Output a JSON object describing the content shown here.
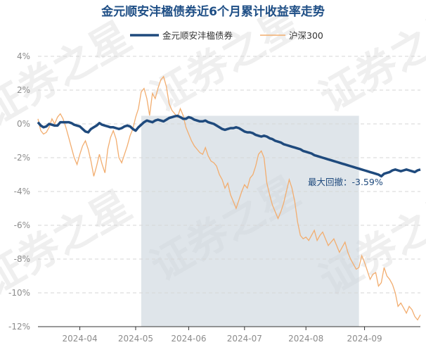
{
  "chart_data": {
    "type": "line",
    "title": "金元顺安沣楹债券近6个月累计收益率走势",
    "watermark": "证券之星",
    "ylim": [
      -12,
      4
    ],
    "yticks": [
      4,
      2,
      0,
      -2,
      -4,
      -6,
      -8,
      -10,
      -12
    ],
    "ytick_labels": [
      "4%",
      "2%",
      "0%",
      "-2%",
      "-4%",
      "-6%",
      "-8%",
      "-10%",
      "-12%"
    ],
    "xlim": [
      0,
      137
    ],
    "xticks": [
      {
        "label": "2024-04",
        "x": 15
      },
      {
        "label": "2024-05",
        "x": 35
      },
      {
        "label": "2024-06",
        "x": 54
      },
      {
        "label": "2024-07",
        "x": 74
      },
      {
        "label": "2024-08",
        "x": 96
      },
      {
        "label": "2024-09",
        "x": 117
      }
    ],
    "drawdown": {
      "label": "最大回撤：-3.59%",
      "start_x": 37,
      "end_x": 115,
      "top_y": 0.48
    },
    "series": [
      {
        "name": "金元顺安沣楹债券",
        "color": "#1f4a7d",
        "values": [
          0.1,
          -0.1,
          -0.2,
          -0.15,
          0.0,
          -0.05,
          -0.1,
          -0.1,
          0.1,
          0.1,
          0.1,
          0.1,
          0.05,
          -0.05,
          -0.1,
          -0.15,
          -0.3,
          -0.45,
          -0.5,
          -0.3,
          -0.2,
          -0.1,
          0.05,
          -0.05,
          -0.1,
          -0.15,
          -0.2,
          -0.2,
          -0.25,
          -0.3,
          -0.25,
          -0.15,
          -0.1,
          -0.15,
          -0.3,
          -0.4,
          -0.2,
          -0.05,
          0.1,
          0.2,
          0.15,
          0.1,
          0.2,
          0.25,
          0.2,
          0.15,
          0.25,
          0.35,
          0.4,
          0.45,
          0.48,
          0.4,
          0.3,
          0.3,
          0.4,
          0.35,
          0.25,
          0.2,
          0.15,
          0.15,
          0.2,
          0.1,
          0.05,
          0.0,
          -0.1,
          -0.2,
          -0.3,
          -0.35,
          -0.3,
          -0.25,
          -0.25,
          -0.2,
          -0.25,
          -0.35,
          -0.45,
          -0.5,
          -0.5,
          -0.55,
          -0.65,
          -0.7,
          -0.75,
          -0.7,
          -0.75,
          -0.85,
          -0.9,
          -1.0,
          -1.05,
          -1.1,
          -1.2,
          -1.25,
          -1.3,
          -1.35,
          -1.4,
          -1.45,
          -1.5,
          -1.6,
          -1.65,
          -1.7,
          -1.75,
          -1.85,
          -1.9,
          -1.95,
          -2.0,
          -2.05,
          -2.1,
          -2.15,
          -2.2,
          -2.25,
          -2.3,
          -2.35,
          -2.4,
          -2.45,
          -2.5,
          -2.55,
          -2.6,
          -2.65,
          -2.7,
          -2.75,
          -2.8,
          -2.85,
          -2.9,
          -2.95,
          -3.0,
          -3.1,
          -2.95,
          -2.9,
          -2.85,
          -2.75,
          -2.7,
          -2.75,
          -2.8,
          -2.75,
          -2.7,
          -2.75,
          -2.8,
          -2.85,
          -2.75,
          -2.7
        ]
      },
      {
        "name": "沪深300",
        "color": "#f2ad6f",
        "values": [
          0.3,
          -0.4,
          -0.6,
          -0.5,
          -0.2,
          0.3,
          0.0,
          0.4,
          0.6,
          0.3,
          -0.2,
          -0.8,
          -1.4,
          -2.0,
          -2.4,
          -1.8,
          -1.3,
          -1.0,
          -1.5,
          -2.2,
          -3.1,
          -2.5,
          -1.8,
          -2.4,
          -2.9,
          -1.5,
          -0.8,
          -0.4,
          -0.9,
          -2.0,
          -2.3,
          -1.8,
          -1.3,
          -0.7,
          -0.3,
          0.4,
          0.9,
          1.9,
          2.1,
          1.5,
          0.5,
          1.8,
          1.5,
          2.1,
          2.6,
          2.8,
          2.2,
          1.2,
          0.8,
          0.6,
          0.4,
          0.9,
          0.5,
          -0.2,
          -0.6,
          -1.0,
          -1.3,
          -1.5,
          -1.7,
          -1.8,
          -1.4,
          -1.9,
          -2.2,
          -2.3,
          -2.5,
          -3.0,
          -3.3,
          -3.8,
          -3.5,
          -4.2,
          -4.6,
          -5.0,
          -4.5,
          -4.0,
          -3.6,
          -3.8,
          -3.2,
          -3.0,
          -2.5,
          -1.8,
          -1.6,
          -2.0,
          -3.5,
          -4.2,
          -4.8,
          -5.2,
          -5.6,
          -5.2,
          -4.7,
          -4.0,
          -3.3,
          -3.8,
          -4.6,
          -5.8,
          -6.6,
          -6.8,
          -6.7,
          -6.9,
          -6.6,
          -6.3,
          -6.9,
          -6.6,
          -6.4,
          -6.8,
          -7.2,
          -7.0,
          -6.8,
          -7.2,
          -7.6,
          -7.3,
          -7.0,
          -7.6,
          -8.0,
          -8.3,
          -8.6,
          -8.5,
          -7.8,
          -8.2,
          -8.7,
          -9.2,
          -8.9,
          -8.8,
          -9.6,
          -9.4,
          -8.5,
          -9.0,
          -9.2,
          -9.5,
          -10.0,
          -10.8,
          -10.6,
          -10.9,
          -11.2,
          -10.8,
          -11.0,
          -11.4,
          -11.6,
          -11.3
        ]
      }
    ]
  }
}
